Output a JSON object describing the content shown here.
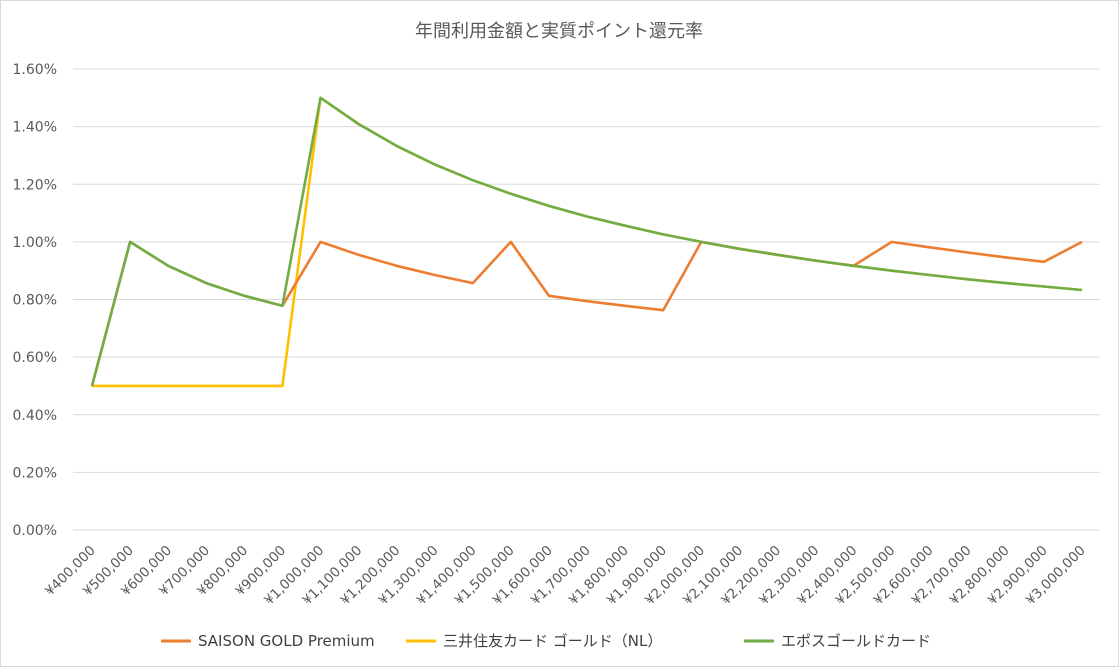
{
  "chart_data": {
    "type": "line",
    "title": "年間利用金額と実質ポイント還元率",
    "categories": [
      "¥400,000",
      "¥500,000",
      "¥600,000",
      "¥700,000",
      "¥800,000",
      "¥900,000",
      "¥1,000,000",
      "¥1,100,000",
      "¥1,200,000",
      "¥1,300,000",
      "¥1,400,000",
      "¥1,500,000",
      "¥1,600,000",
      "¥1,700,000",
      "¥1,800,000",
      "¥1,900,000",
      "¥2,000,000",
      "¥2,100,000",
      "¥2,200,000",
      "¥2,300,000",
      "¥2,400,000",
      "¥2,500,000",
      "¥2,600,000",
      "¥2,700,000",
      "¥2,800,000",
      "¥2,900,000",
      "¥3,000,000"
    ],
    "ylim": [
      0,
      1.6
    ],
    "yticks": [
      "0.00%",
      "0.20%",
      "0.40%",
      "0.60%",
      "0.80%",
      "1.00%",
      "1.20%",
      "1.40%",
      "1.60%"
    ],
    "ytick_values": [
      0,
      0.2,
      0.4,
      0.6,
      0.8,
      1.0,
      1.2,
      1.4,
      1.6
    ],
    "grid": "horizontal",
    "legend_position": "bottom",
    "series": [
      {
        "name": "SAISON GOLD Premium",
        "color": "#ED7D31",
        "values": [
          0.5,
          1.0,
          0.917,
          0.857,
          0.813,
          0.778,
          1.0,
          0.955,
          0.917,
          0.885,
          0.857,
          1.0,
          0.813,
          0.794,
          0.778,
          0.763,
          1.0,
          0.976,
          0.955,
          0.935,
          0.917,
          1.0,
          0.981,
          0.963,
          0.946,
          0.931,
          1.0
        ]
      },
      {
        "name": "三井住友カード ゴールド（NL）",
        "color": "#FFC000",
        "values": [
          0.5,
          0.5,
          0.5,
          0.5,
          0.5,
          0.5,
          1.5,
          1.409,
          1.333,
          1.269,
          1.214,
          1.167,
          1.125,
          1.088,
          1.056,
          1.026,
          1.0,
          0.976,
          0.955,
          0.935,
          0.917,
          0.9,
          0.885,
          0.87,
          0.857,
          0.845,
          0.833
        ]
      },
      {
        "name": "エポスゴールドカード",
        "color": "#70AD47",
        "values": [
          0.5,
          1.0,
          0.917,
          0.857,
          0.813,
          0.778,
          1.5,
          1.409,
          1.333,
          1.269,
          1.214,
          1.167,
          1.125,
          1.088,
          1.056,
          1.026,
          1.0,
          0.976,
          0.955,
          0.935,
          0.917,
          0.9,
          0.885,
          0.87,
          0.857,
          0.845,
          0.833
        ]
      }
    ]
  }
}
